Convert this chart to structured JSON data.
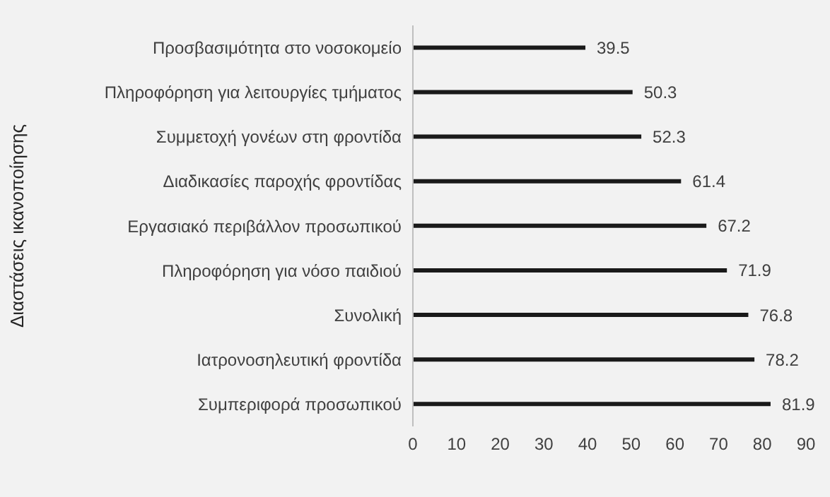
{
  "chart_data": {
    "type": "bar",
    "orientation": "horizontal",
    "ylabel": "Διαστάσεις ικανοποίησης",
    "categories": [
      "Προσβασιμότητα στο νοσοκομείο",
      "Πληροφόρηση για λειτουργίες τμήματος",
      "Συμμετοχή γονέων στη φροντίδα",
      "Διαδικασίες παροχής φροντίδας",
      "Εργασιακό περιβάλλον  προσωπικού",
      "Πληροφόρηση για νόσο παιδιού",
      "Συνολική",
      "Ιατρονοσηλευτική φροντίδα",
      "Συμπεριφορά προσωπικού"
    ],
    "values": [
      39.5,
      50.3,
      52.3,
      61.4,
      67.2,
      71.9,
      76.8,
      78.2,
      81.9
    ],
    "color": "#1a1a1a",
    "xlim": [
      0,
      90
    ],
    "xticks": [
      0,
      10,
      20,
      30,
      40,
      50,
      60,
      70,
      80,
      90
    ],
    "data_labels": true,
    "grid": false,
    "legend": false
  }
}
